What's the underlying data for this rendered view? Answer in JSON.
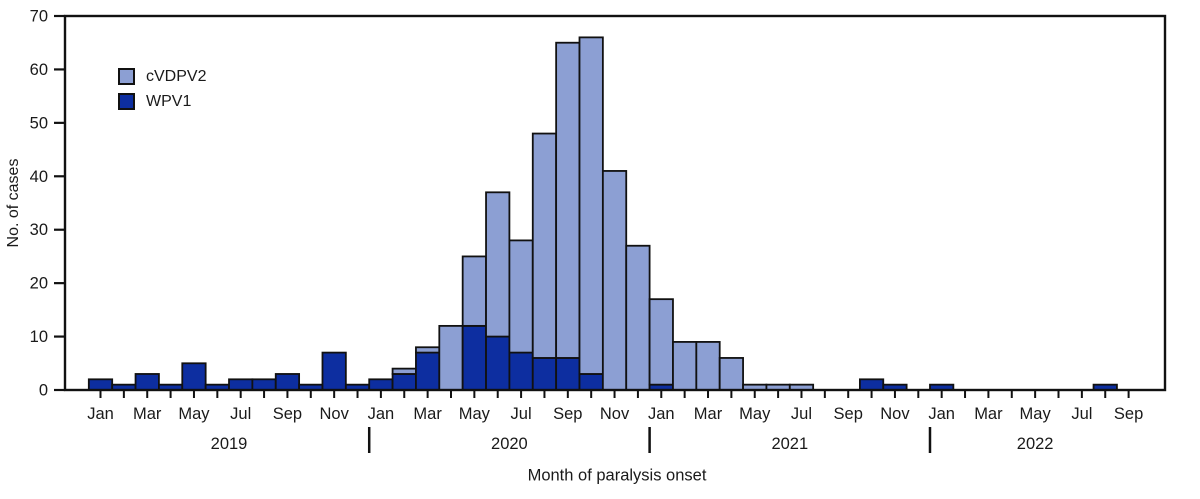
{
  "chart_data": {
    "type": "bar",
    "stacked": true,
    "xlabel": "Month of paralysis onset",
    "ylabel": "No. of cases",
    "ylim": [
      0,
      70
    ],
    "ytick_step": 10,
    "grid": false,
    "legend_position": "upper-left-inside",
    "categories": [
      "Jan 2019",
      "Feb 2019",
      "Mar 2019",
      "Apr 2019",
      "May 2019",
      "Jun 2019",
      "Jul 2019",
      "Aug 2019",
      "Sep 2019",
      "Oct 2019",
      "Nov 2019",
      "Dec 2019",
      "Jan 2020",
      "Feb 2020",
      "Mar 2020",
      "Apr 2020",
      "May 2020",
      "Jun 2020",
      "Jul 2020",
      "Aug 2020",
      "Sep 2020",
      "Oct 2020",
      "Nov 2020",
      "Dec 2020",
      "Jan 2021",
      "Feb 2021",
      "Mar 2021",
      "Apr 2021",
      "May 2021",
      "Jun 2021",
      "Jul 2021",
      "Aug 2021",
      "Sep 2021",
      "Oct 2021",
      "Nov 2021",
      "Dec 2021",
      "Jan 2022",
      "Feb 2022",
      "Mar 2022",
      "Apr 2022",
      "May 2022",
      "Jun 2022",
      "Jul 2022",
      "Aug 2022",
      "Sep 2022"
    ],
    "series": [
      {
        "name": "cVDPV2",
        "color": "#8C9FD3",
        "values": [
          0,
          0,
          0,
          0,
          0,
          0,
          0,
          0,
          0,
          0,
          0,
          0,
          0,
          1,
          1,
          12,
          13,
          27,
          21,
          42,
          59,
          63,
          41,
          27,
          16,
          9,
          9,
          6,
          1,
          1,
          1,
          0,
          0,
          0,
          0,
          0,
          0,
          0,
          0,
          0,
          0,
          0,
          0,
          0,
          0
        ]
      },
      {
        "name": "WPV1",
        "color": "#0D2EA0",
        "values": [
          2,
          1,
          3,
          1,
          5,
          1,
          2,
          2,
          3,
          1,
          7,
          1,
          2,
          3,
          7,
          0,
          12,
          10,
          7,
          6,
          6,
          3,
          0,
          0,
          1,
          0,
          0,
          0,
          0,
          0,
          0,
          0,
          0,
          2,
          1,
          0,
          1,
          0,
          0,
          0,
          0,
          0,
          0,
          1,
          0
        ]
      }
    ],
    "stack_bottom_to_top": [
      "WPV1",
      "cVDPV2"
    ],
    "x_tick_label_every": 2,
    "year_groups": [
      {
        "label": "2019",
        "start": 0,
        "end": 11
      },
      {
        "label": "2020",
        "start": 12,
        "end": 23
      },
      {
        "label": "2021",
        "start": 24,
        "end": 35
      },
      {
        "label": "2022",
        "start": 36,
        "end": 44
      }
    ],
    "axis_color": "#111111",
    "text_color": "#1a1a1a"
  }
}
